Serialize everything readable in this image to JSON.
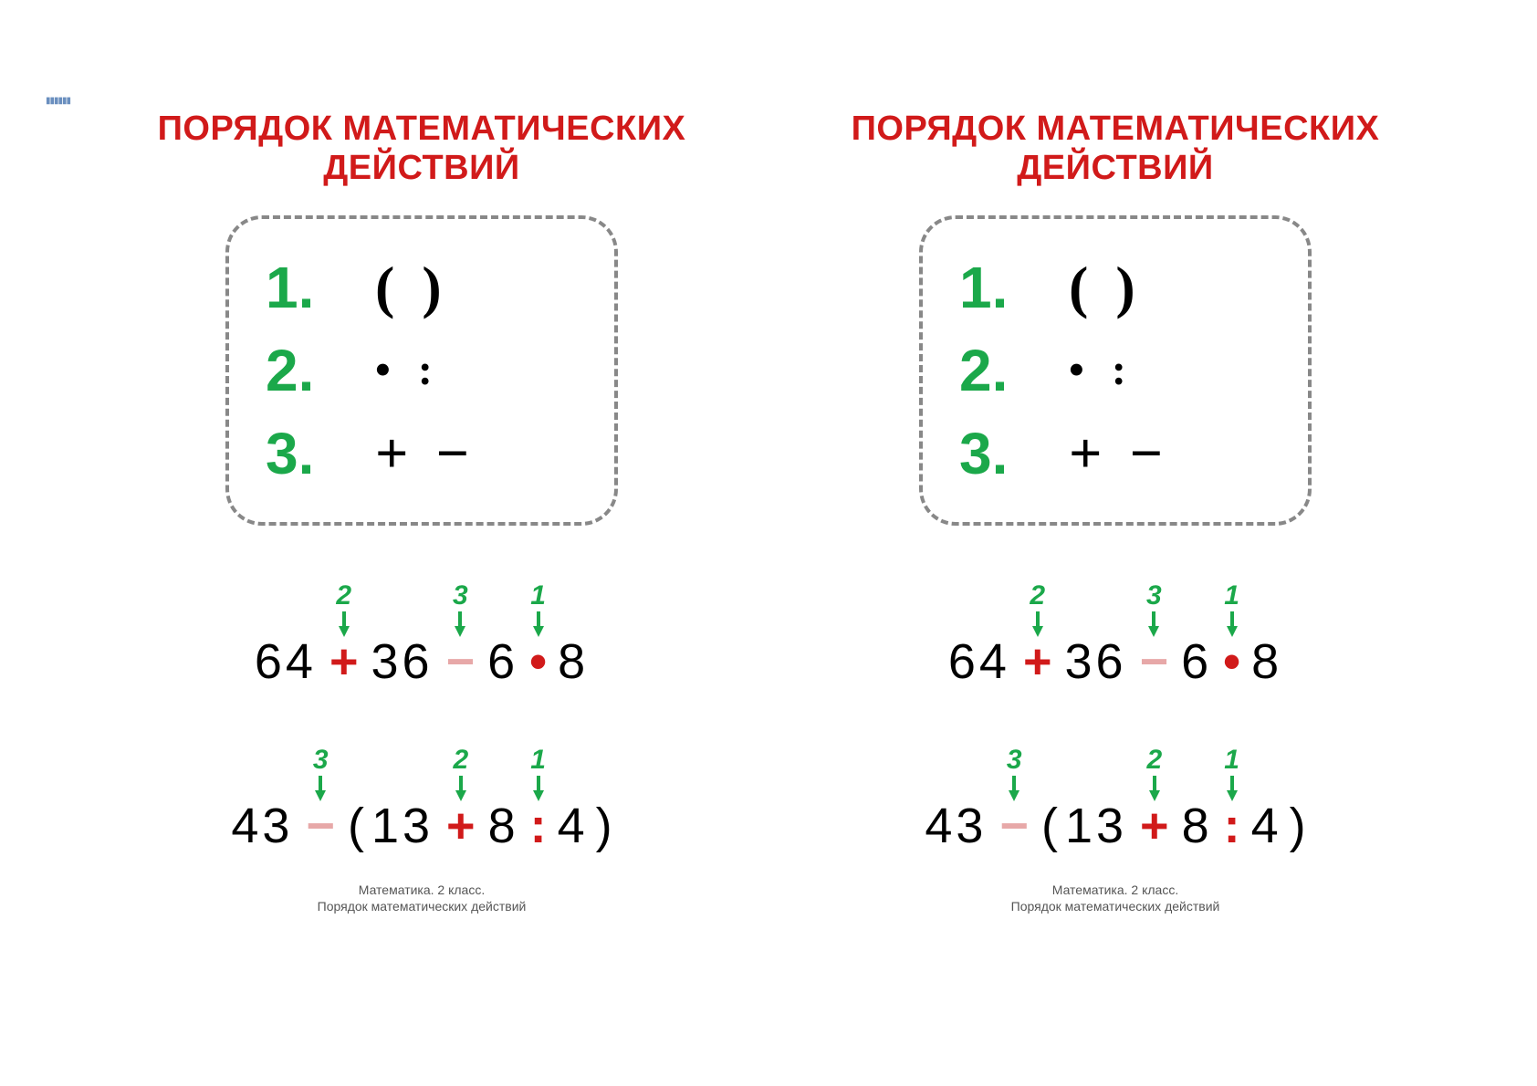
{
  "colors": {
    "title": "#d11a1a",
    "green": "#1ba84a",
    "op_red": "#d11a1a",
    "op_pink": "#e7a8a8",
    "box_border": "#888888",
    "text": "#000000",
    "bg": "#ffffff"
  },
  "typography": {
    "title_fontsize": 38,
    "title_weight": 800,
    "rule_num_fontsize": 64,
    "rule_sym_fontsize": 64,
    "example_fontsize": 54,
    "step_fontsize": 30,
    "footer_fontsize": 14
  },
  "panel": {
    "title": "ПОРЯДОК МАТЕМАТИЧЕСКИХ ДЕЙСТВИЙ",
    "rules": [
      {
        "n": "1.",
        "syms": [
          "(",
          ")"
        ]
      },
      {
        "n": "2.",
        "syms": [
          "•",
          ":"
        ]
      },
      {
        "n": "3.",
        "syms": [
          "+",
          "−"
        ]
      }
    ],
    "ex1": {
      "tokens": [
        {
          "t": "num",
          "v": "64"
        },
        {
          "t": "op",
          "v": "+",
          "style": "red",
          "step": "2"
        },
        {
          "t": "num",
          "v": "36"
        },
        {
          "t": "op",
          "v": "−",
          "style": "pink",
          "step": "3"
        },
        {
          "t": "num",
          "v": "6"
        },
        {
          "t": "op",
          "v": "•",
          "style": "dot",
          "step": "1"
        },
        {
          "t": "num",
          "v": "8"
        }
      ]
    },
    "ex2": {
      "tokens": [
        {
          "t": "num",
          "v": "43"
        },
        {
          "t": "op",
          "v": "−",
          "style": "pink",
          "step": "3"
        },
        {
          "t": "paren",
          "v": "("
        },
        {
          "t": "num",
          "v": "13"
        },
        {
          "t": "op",
          "v": "+",
          "style": "red",
          "step": "2"
        },
        {
          "t": "num",
          "v": "8"
        },
        {
          "t": "op",
          "v": ":",
          "style": "dot",
          "step": "1"
        },
        {
          "t": "num",
          "v": "4"
        },
        {
          "t": "paren",
          "v": ")"
        }
      ]
    },
    "footer_line1": "Математика. 2 класс.",
    "footer_line2": "Порядок математических действий"
  },
  "tiny_bar": "▮▮▮▮▮▮"
}
